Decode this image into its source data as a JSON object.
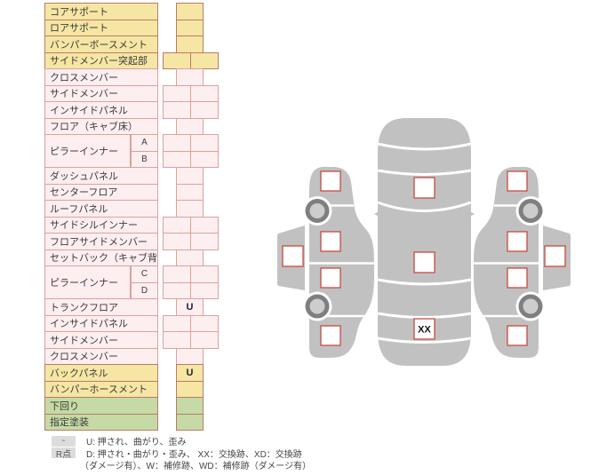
{
  "table": {
    "rows": [
      {
        "label": "コアサポート",
        "color": "yellow",
        "cells": "single",
        "value": ""
      },
      {
        "label": "ロアサポート",
        "color": "yellow",
        "cells": "single",
        "value": ""
      },
      {
        "label": "バンパーボースメント",
        "color": "yellow",
        "cells": "single",
        "value": ""
      },
      {
        "label": "サイドメンバー突起部",
        "color": "yellow",
        "cells": "double",
        "value": ""
      },
      {
        "label": "クロスメンバー",
        "color": "pink",
        "cells": "single",
        "value": ""
      },
      {
        "label": "サイドメンバー",
        "color": "pink",
        "cells": "double",
        "value": ""
      },
      {
        "label": "インサイドパネル",
        "color": "pink",
        "cells": "double",
        "value": ""
      },
      {
        "label": "フロア（キャブ床）",
        "color": "pink",
        "cells": "single",
        "value": ""
      },
      {
        "label": "ピラーインナー",
        "sub": "A",
        "group_start": true,
        "color": "pink",
        "cells": "double",
        "value": ""
      },
      {
        "label": "ピラーインナー",
        "sub": "B",
        "color": "pink",
        "cells": "double",
        "value": ""
      },
      {
        "label": "ダッシュパネル",
        "color": "pink",
        "cells": "single",
        "value": ""
      },
      {
        "label": "センターフロア",
        "color": "pink",
        "cells": "single",
        "value": ""
      },
      {
        "label": "ルーフパネル",
        "color": "pink",
        "cells": "single",
        "value": ""
      },
      {
        "label": "サイドシルインナー",
        "color": "pink",
        "cells": "double",
        "value": ""
      },
      {
        "label": "フロアサイドメンバー",
        "color": "pink",
        "cells": "double",
        "value": ""
      },
      {
        "label": "セットバック（キャブ背）",
        "color": "pink",
        "cells": "single",
        "value": ""
      },
      {
        "label": "ピラーインナー",
        "sub": "C",
        "group_start": true,
        "color": "pink",
        "cells": "double",
        "value": ""
      },
      {
        "label": "ピラーインナー",
        "sub": "D",
        "color": "pink",
        "cells": "double",
        "value": ""
      },
      {
        "label": "トランクフロア",
        "color": "pink",
        "cells": "single",
        "value": "U"
      },
      {
        "label": "インサイドパネル",
        "color": "pink",
        "cells": "double",
        "value": ""
      },
      {
        "label": "サイドメンバー",
        "color": "pink",
        "cells": "double",
        "value": ""
      },
      {
        "label": "クロスメンバー",
        "color": "pink",
        "cells": "single",
        "value": ""
      },
      {
        "label": "バックパネル",
        "color": "yellow",
        "cells": "single",
        "value": "U"
      },
      {
        "label": "バンパーホースメント",
        "color": "yellow",
        "cells": "single",
        "value": ""
      },
      {
        "label": "下回り",
        "color": "green",
        "cells": "single",
        "value": ""
      },
      {
        "label": "指定塗装",
        "color": "green",
        "cells": "single",
        "value": ""
      }
    ]
  },
  "diagram": {
    "markers": [
      {
        "name": "top-hood",
        "value": ""
      },
      {
        "name": "top-roof",
        "value": ""
      },
      {
        "name": "top-trunk",
        "value": "XX"
      },
      {
        "name": "left-front-fender",
        "value": ""
      },
      {
        "name": "left-front-door",
        "value": ""
      },
      {
        "name": "left-rear-door",
        "value": ""
      },
      {
        "name": "left-rear-fender",
        "value": ""
      },
      {
        "name": "left-roof-side",
        "value": ""
      },
      {
        "name": "right-front-fender",
        "value": ""
      },
      {
        "name": "right-front-door",
        "value": ""
      },
      {
        "name": "right-rear-door",
        "value": ""
      },
      {
        "name": "right-rear-fender",
        "value": ""
      },
      {
        "name": "right-roof-side",
        "value": ""
      }
    ]
  },
  "legend": {
    "rows": [
      {
        "badge": "-",
        "text": "U: 押され、曲がり、歪み"
      },
      {
        "badge": "R点",
        "text": "D: 押され・曲がり・歪み、 XX：交換跡、XD：交換跡"
      },
      {
        "badge": "",
        "text": "（ダメージ有）、W：補修跡、WD：補修跡（ダメージ有）"
      }
    ]
  },
  "colors": {
    "row_yellow": "#f6e6a3",
    "row_pink": "#fdeef0",
    "row_green": "#c5daa5",
    "border_strong": "#b97b6b",
    "border_pink": "#dba29a",
    "marker_border": "#c64a41",
    "car_gray": "#c1c1c1",
    "wheel_ring": "#7f7f7f",
    "badge_gray": "#dcdcdc"
  }
}
